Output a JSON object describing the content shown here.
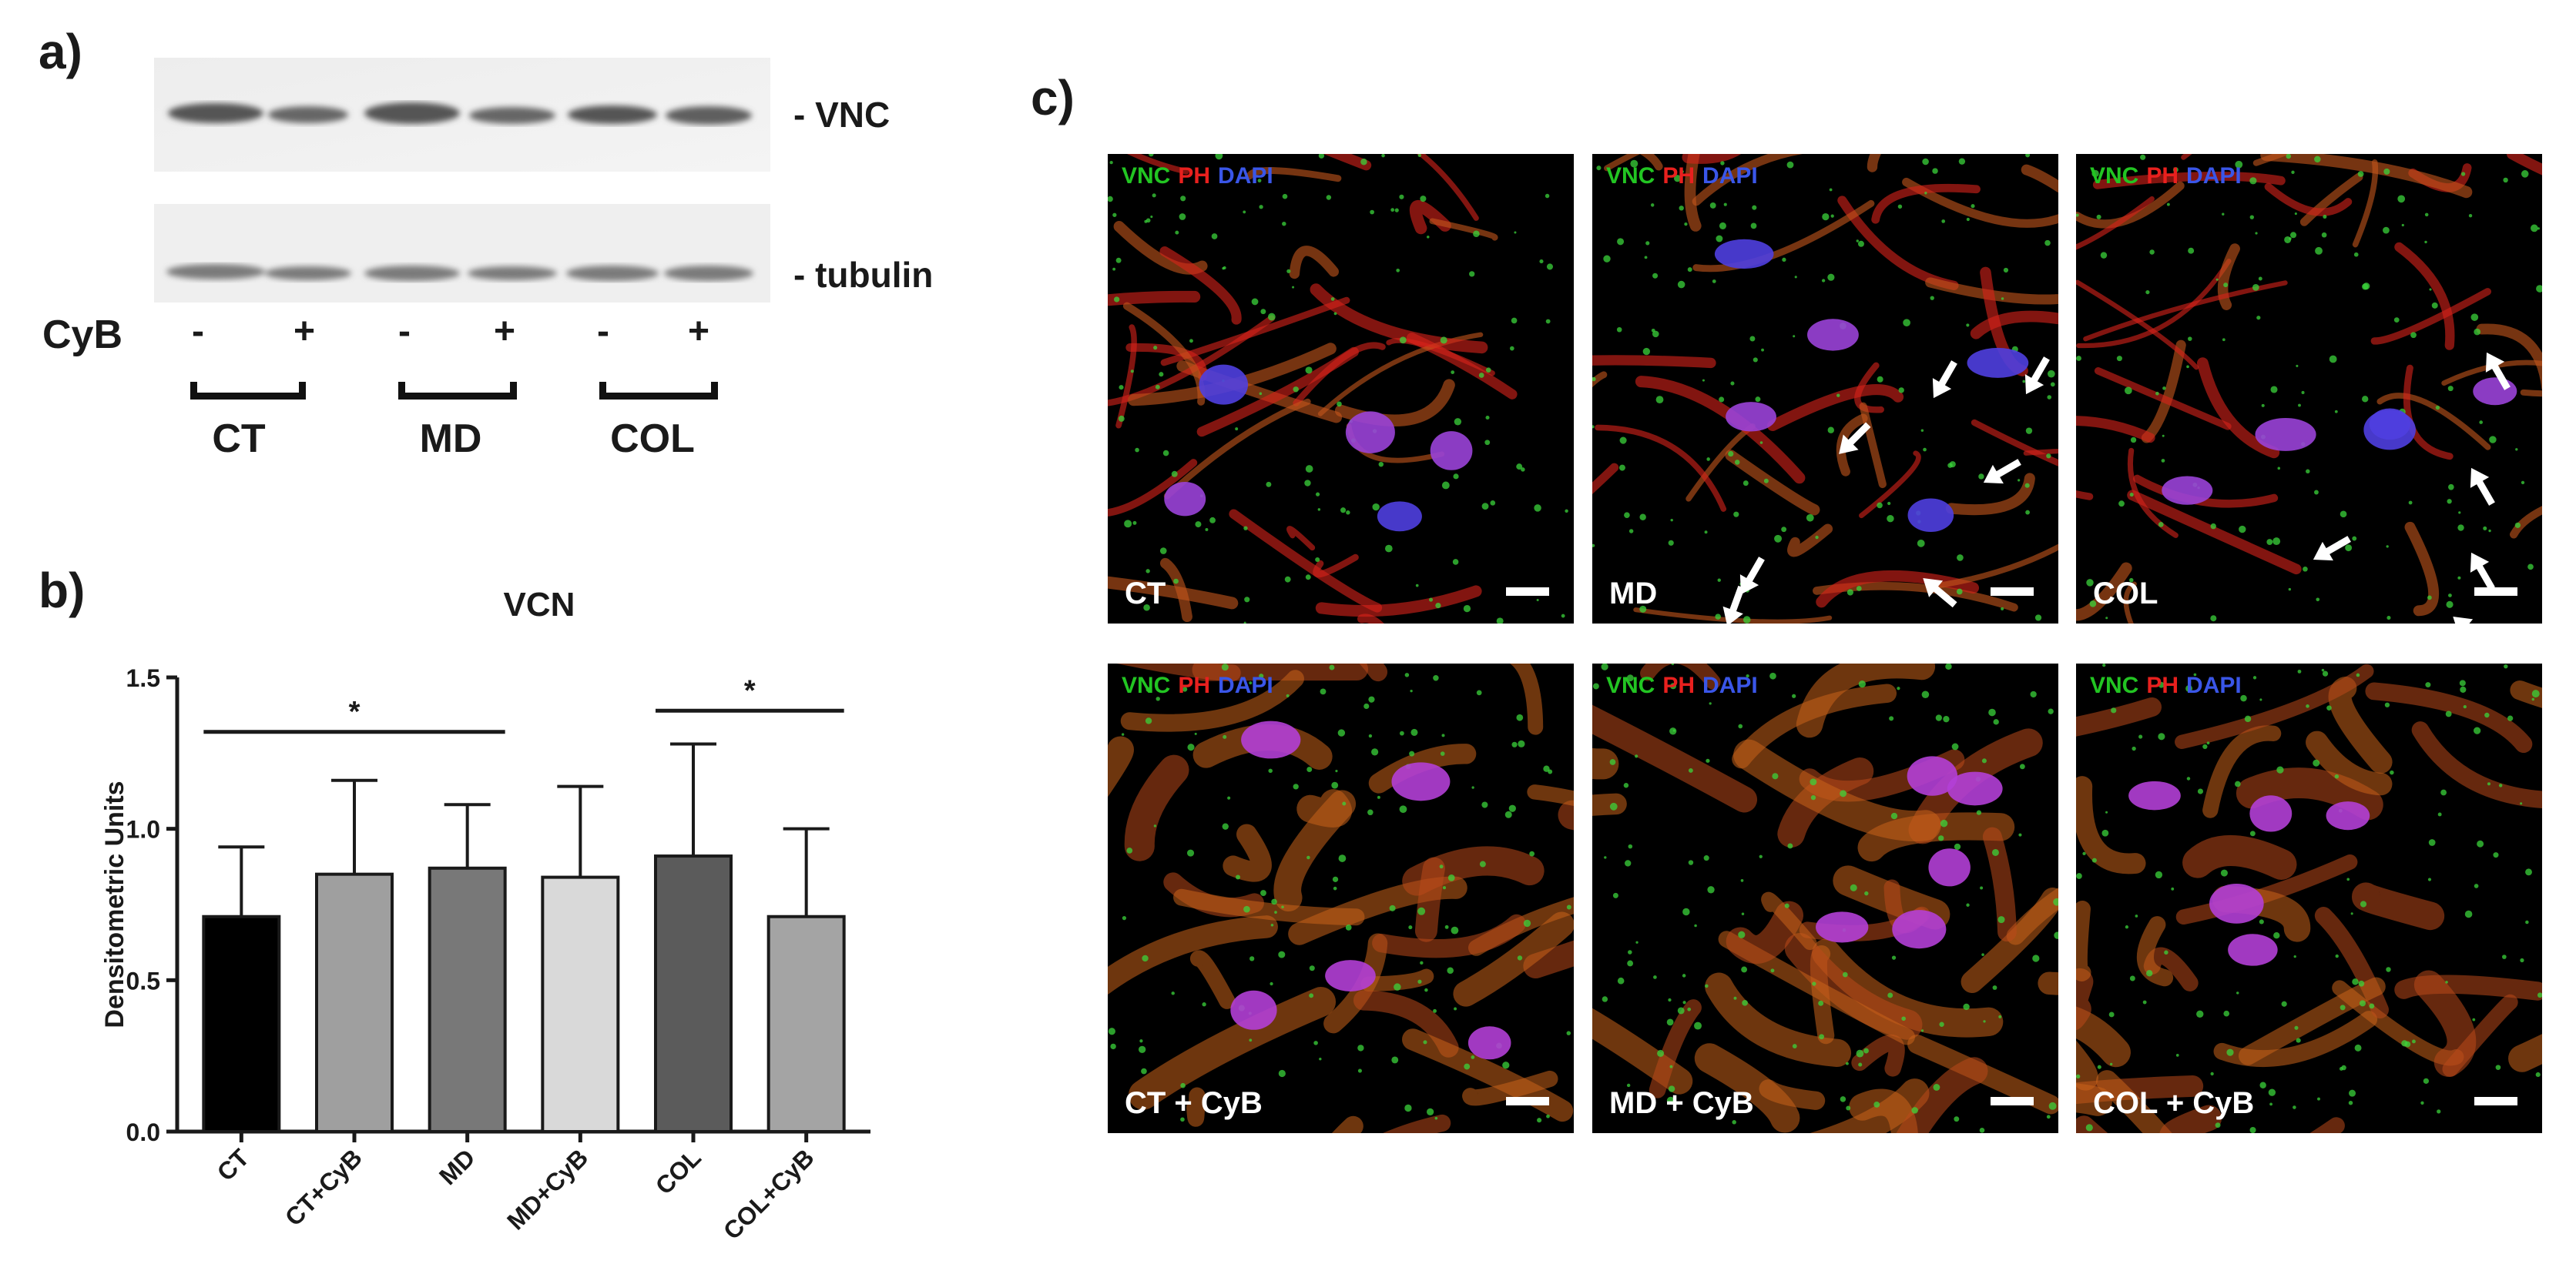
{
  "panel_a": {
    "letter": "a)",
    "band_labels": [
      "- VNC",
      "- tubulin"
    ],
    "cyb_label": "CyB",
    "lane_signs": [
      "-",
      "+",
      "-",
      "+",
      "-",
      "+"
    ],
    "groups": [
      "CT",
      "MD",
      "COL"
    ]
  },
  "panel_b": {
    "letter": "b)"
  },
  "panel_c": {
    "letter": "c)",
    "legend": {
      "vnc": "VNC",
      "ph": "PH",
      "dapi": "DAPI"
    },
    "colors": {
      "vnc": "#22c522",
      "ph": "#e8201e",
      "dapi": "#3a56e8"
    },
    "panels": [
      {
        "label": "CT",
        "arrows": 0
      },
      {
        "label": "MD",
        "arrows": 7
      },
      {
        "label": "COL",
        "arrows": 5
      },
      {
        "label": "CT + CyB",
        "arrows": 0
      },
      {
        "label": "MD + CyB",
        "arrows": 0
      },
      {
        "label": "COL + CyB",
        "arrows": 0
      }
    ]
  },
  "chart_data": {
    "type": "bar",
    "title": "VCN",
    "xlabel": "",
    "ylabel": "Densitometric Units",
    "categories": [
      "CT",
      "CT+CyB",
      "MD",
      "MD+CyB",
      "COL",
      "COL+CyB"
    ],
    "values": [
      0.71,
      0.85,
      0.87,
      0.84,
      0.91,
      0.71
    ],
    "errors": [
      0.23,
      0.31,
      0.21,
      0.3,
      0.37,
      0.29
    ],
    "bar_colors": [
      "#000000",
      "#9f9f9f",
      "#787878",
      "#d9d9d9",
      "#5b5b5b",
      "#a4a4a4"
    ],
    "ylim": [
      0,
      1.5
    ],
    "yticks": [
      "0.0",
      "0.5",
      "1.0",
      "1.5"
    ],
    "significance": [
      {
        "from": 0,
        "to": 2,
        "label": "*"
      },
      {
        "from": 4,
        "to": 5,
        "label": "*"
      }
    ]
  }
}
